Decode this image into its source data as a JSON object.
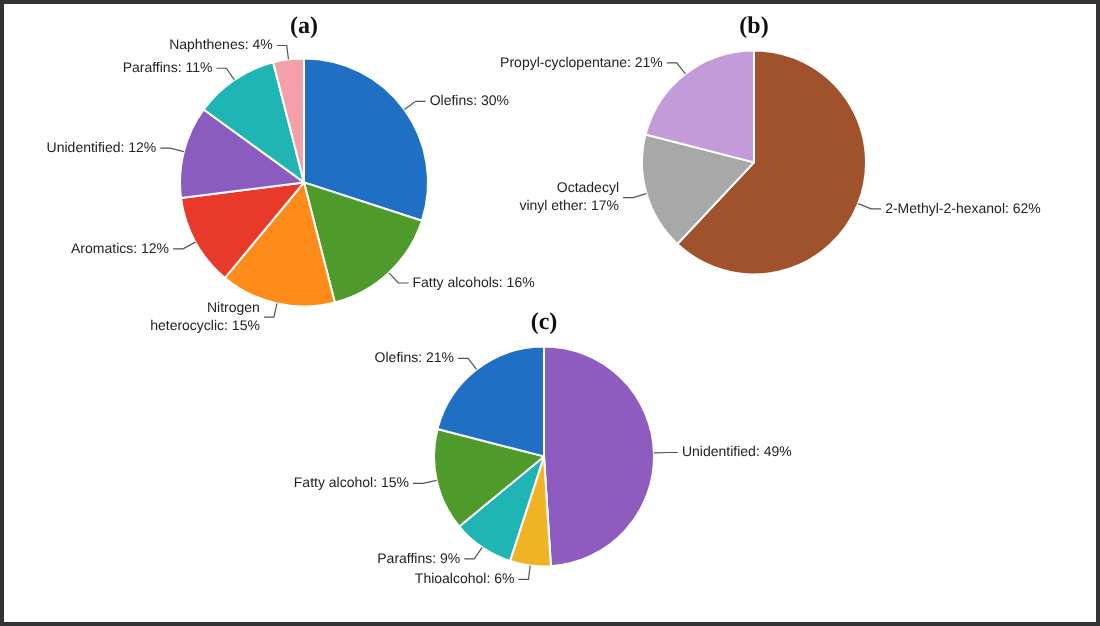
{
  "chart_data": [
    {
      "type": "pie",
      "title": "(a)",
      "categories": [
        "Olefins",
        "Fatty alcohols",
        "Nitrogen heterocyclic",
        "Aromatics",
        "Unidentified",
        "Paraffins",
        "Naphthenes"
      ],
      "values": [
        30,
        16,
        15,
        12,
        12,
        11,
        4
      ],
      "value_labels": [
        "30%",
        "16%",
        "15%",
        "12%",
        "12%",
        "11%",
        "4%"
      ],
      "colors": [
        "#1f6fc5",
        "#4e9a2a",
        "#ff8c1a",
        "#e8392a",
        "#8a5cc0",
        "#1fb5b5",
        "#f4a0a8"
      ],
      "legend": false
    },
    {
      "type": "pie",
      "title": "(b)",
      "categories": [
        "2-Methyl-2-hexanol",
        "Octadecyl vinyl ether",
        "Propyl-cyclopentane"
      ],
      "values": [
        62,
        17,
        21
      ],
      "value_labels": [
        "62%",
        "17%",
        "21%"
      ],
      "colors": [
        "#a0522d",
        "#a8a8a8",
        "#c39bd9"
      ],
      "legend": false
    },
    {
      "type": "pie",
      "title": "(c)",
      "categories": [
        "Unidentified",
        "Thioalcohol",
        "Paraffins",
        "Fatty alcohol",
        "Olefins"
      ],
      "values": [
        49,
        6,
        9,
        15,
        21
      ],
      "value_labels": [
        "49%",
        "6%",
        "9%",
        "15%",
        "21%"
      ],
      "colors": [
        "#8e5cc0",
        "#f0b323",
        "#1fb5b5",
        "#4e9a2a",
        "#1f6fc5"
      ],
      "legend": false
    }
  ]
}
